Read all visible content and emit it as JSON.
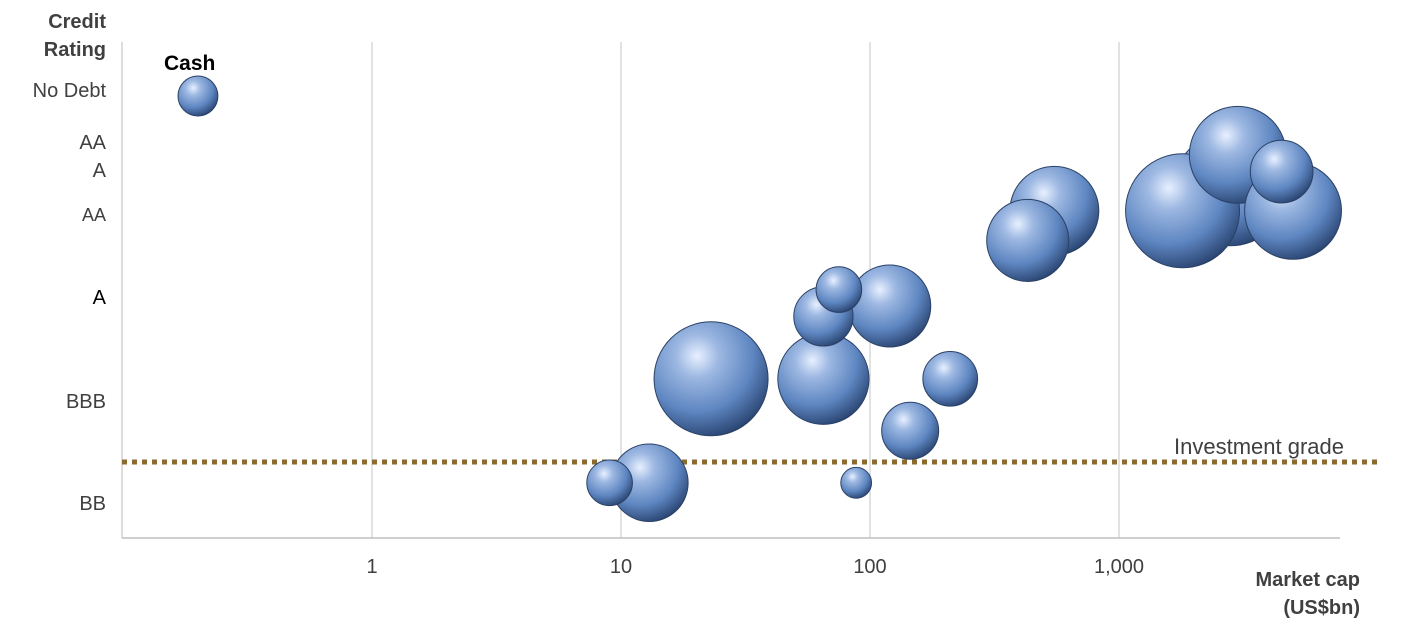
{
  "chart_data": {
    "type": "bubble",
    "title": "",
    "xlabel": "Market cap (US$bn)",
    "ylabel": "Credit Rating",
    "xscale": "log",
    "xlim": [
      0.1,
      6000
    ],
    "x_ticks": [
      "1",
      "10",
      "100",
      "1,000"
    ],
    "y_categories": [
      "No Debt",
      "AA",
      "A",
      "AA",
      "A",
      "BBB",
      "BB"
    ],
    "y_category_colors": [
      "#404040",
      "#404040",
      "#404040",
      "#404040",
      "#000000",
      "#404040",
      "#404040"
    ],
    "threshold_line": {
      "label": "Investment grade",
      "color": "#8B6B2F",
      "style": "dotted"
    },
    "bubble_color": "#5E86C1",
    "points": [
      {
        "label": "Cash",
        "x": 0.2,
        "y_level": 0.0,
        "size": 0.35
      },
      {
        "x": 3000,
        "y_level": 1.1,
        "size": 0.85
      },
      {
        "x": 4500,
        "y_level": 1.7,
        "size": 0.55
      },
      {
        "x": 2800,
        "y_level": 2.2,
        "size": 1.0
      },
      {
        "x": 5000,
        "y_level": 2.7,
        "size": 0.85
      },
      {
        "x": 1800,
        "y_level": 2.7,
        "size": 1.0
      },
      {
        "x": 550,
        "y_level": 2.7,
        "size": 0.78
      },
      {
        "x": 430,
        "y_level": 3.2,
        "size": 0.72
      },
      {
        "x": 120,
        "y_level": 4.0,
        "size": 0.72
      },
      {
        "x": 75,
        "y_level": 3.8,
        "size": 0.4
      },
      {
        "x": 65,
        "y_level": 4.1,
        "size": 0.52
      },
      {
        "x": 65,
        "y_level": 4.7,
        "size": 0.8
      },
      {
        "x": 23,
        "y_level": 4.7,
        "size": 1.0
      },
      {
        "x": 210,
        "y_level": 4.7,
        "size": 0.48
      },
      {
        "x": 145,
        "y_level": 5.2,
        "size": 0.5
      },
      {
        "x": 9,
        "y_level": 5.7,
        "size": 0.4
      },
      {
        "x": 13,
        "y_level": 5.7,
        "size": 0.68
      },
      {
        "x": 88,
        "y_level": 5.7,
        "size": 0.27
      }
    ]
  },
  "labels": {
    "ytitle_line1": "Credit",
    "ytitle_line2": "Rating",
    "xtitle_line1": "Market cap",
    "xtitle_line2": "(US$bn)",
    "cash": "Cash",
    "investment_grade": "Investment grade"
  }
}
